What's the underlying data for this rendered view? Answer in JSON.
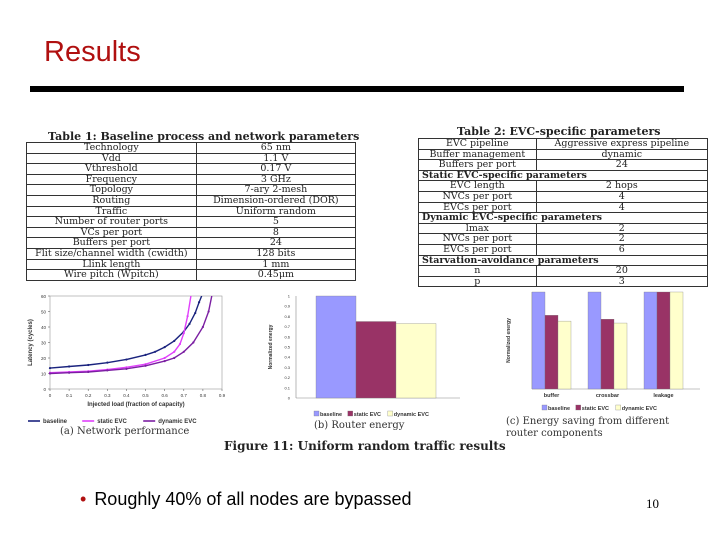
{
  "slide": {
    "title": "Results",
    "bullet": "Roughly 40% of all nodes are bypassed",
    "page_number": "10"
  },
  "table1": {
    "caption": "Table 1: Baseline process and network parameters",
    "rows": [
      [
        "Technology",
        "65 nm"
      ],
      [
        "Vdd",
        "1.1 V"
      ],
      [
        "Vthreshold",
        "0.17 V"
      ],
      [
        "Frequency",
        "3 GHz"
      ],
      [
        "Topology",
        "7-ary 2-mesh"
      ],
      [
        "Routing",
        "Dimension-ordered (DOR)"
      ],
      [
        "Traffic",
        "Uniform random"
      ],
      [
        "Number of router ports",
        "5"
      ],
      [
        "VCs per port",
        "8"
      ],
      [
        "Buffers per port",
        "24"
      ],
      [
        "Flit size/channel width (cwidth)",
        "128 bits"
      ],
      [
        "Llink length",
        "1 mm"
      ],
      [
        "Wire pitch (Wpitch)",
        "0.45μm"
      ]
    ]
  },
  "table2": {
    "caption": "Table 2: EVC-specific parameters",
    "rows": [
      {
        "cells": [
          "EVC pipeline",
          "Aggressive express pipeline"
        ]
      },
      {
        "cells": [
          "Buffer management",
          "dynamic"
        ]
      },
      {
        "cells": [
          "Buffers per port",
          "24"
        ]
      },
      {
        "section": "Static EVC-specific parameters"
      },
      {
        "cells": [
          "EVC length",
          "2 hops"
        ]
      },
      {
        "cells": [
          "NVCs per port",
          "4"
        ]
      },
      {
        "cells": [
          "EVCs per port",
          "4"
        ]
      },
      {
        "section": "Dynamic EVC-specific parameters"
      },
      {
        "cells": [
          "lmax",
          "2"
        ]
      },
      {
        "cells": [
          "NVCs per port",
          "2"
        ]
      },
      {
        "cells": [
          "EVCs per port",
          "6"
        ]
      },
      {
        "section": "Starvation-avoidance parameters"
      },
      {
        "cells": [
          "n",
          "20"
        ]
      },
      {
        "cells": [
          "p",
          "3"
        ]
      }
    ]
  },
  "figure": {
    "caption": "Figure 11: Uniform random traffic results",
    "sub_a": "(a) Network performance",
    "sub_b": "(b) Router energy",
    "sub_c_line1": "(c) Energy saving from different",
    "sub_c_line2": "router components"
  },
  "chart_data": [
    {
      "type": "line",
      "xlabel": "Injected load (fraction of capacity)",
      "ylabel": "Latency (cycles)",
      "xlim": [
        0,
        0.9
      ],
      "ylim": [
        0,
        60
      ],
      "xticks": [
        "0",
        "0.1",
        "0.2",
        "0.3",
        "0.4",
        "0.5",
        "0.6",
        "0.7",
        "0.8",
        "0.9"
      ],
      "yticks": [
        "0",
        "10",
        "20",
        "30",
        "40",
        "50",
        "60"
      ],
      "legend": "bottom",
      "series": [
        {
          "name": "baseline",
          "color": "#1a237e",
          "x": [
            0.0,
            0.1,
            0.2,
            0.3,
            0.4,
            0.5,
            0.55,
            0.6,
            0.65,
            0.7,
            0.73,
            0.76,
            0.78,
            0.8
          ],
          "y": [
            13.5,
            14.5,
            15.5,
            17,
            19,
            22,
            24,
            27,
            31,
            37,
            42,
            49,
            56,
            62
          ]
        },
        {
          "name": "static EVC",
          "color": "#e040fb",
          "x": [
            0.0,
            0.1,
            0.2,
            0.3,
            0.4,
            0.5,
            0.6,
            0.65,
            0.68,
            0.7,
            0.72,
            0.74
          ],
          "y": [
            10.5,
            11,
            11.5,
            12.5,
            14,
            16,
            20,
            24,
            29,
            36,
            47,
            62
          ]
        },
        {
          "name": "dynamic EVC",
          "color": "#7b1fa2",
          "x": [
            0.0,
            0.1,
            0.2,
            0.3,
            0.4,
            0.5,
            0.6,
            0.65,
            0.7,
            0.75,
            0.8,
            0.83,
            0.85
          ],
          "y": [
            10,
            10.5,
            11,
            12,
            13,
            15,
            18,
            20,
            24,
            30,
            40,
            50,
            62
          ]
        }
      ]
    },
    {
      "type": "bar",
      "ylabel": "Normalized energy",
      "ylim": [
        0,
        1
      ],
      "yticks": [
        "0",
        "0.1",
        "0.2",
        "0.3",
        "0.4",
        "0.5",
        "0.6",
        "0.7",
        "0.8",
        "0.9",
        "1"
      ],
      "legend": "bottom",
      "series": [
        {
          "name": "baseline",
          "color": "#9999ff",
          "value": 1.0
        },
        {
          "name": "static EVC",
          "color": "#993366",
          "value": 0.75
        },
        {
          "name": "dynamic EVC",
          "color": "#ffffcc",
          "value": 0.73
        }
      ]
    },
    {
      "type": "bar",
      "ylabel": "Normalized energy",
      "ylim": [
        0,
        1
      ],
      "categories": [
        "buffer",
        "crossbar",
        "leakage"
      ],
      "legend": "bottom",
      "series": [
        {
          "name": "baseline",
          "color": "#9999ff",
          "values": [
            1.0,
            1.0,
            1.0
          ]
        },
        {
          "name": "static EVC",
          "color": "#993366",
          "values": [
            0.76,
            0.72,
            1.0
          ]
        },
        {
          "name": "dynamic EVC",
          "color": "#ffffcc",
          "values": [
            0.7,
            0.68,
            1.0
          ]
        }
      ]
    }
  ]
}
